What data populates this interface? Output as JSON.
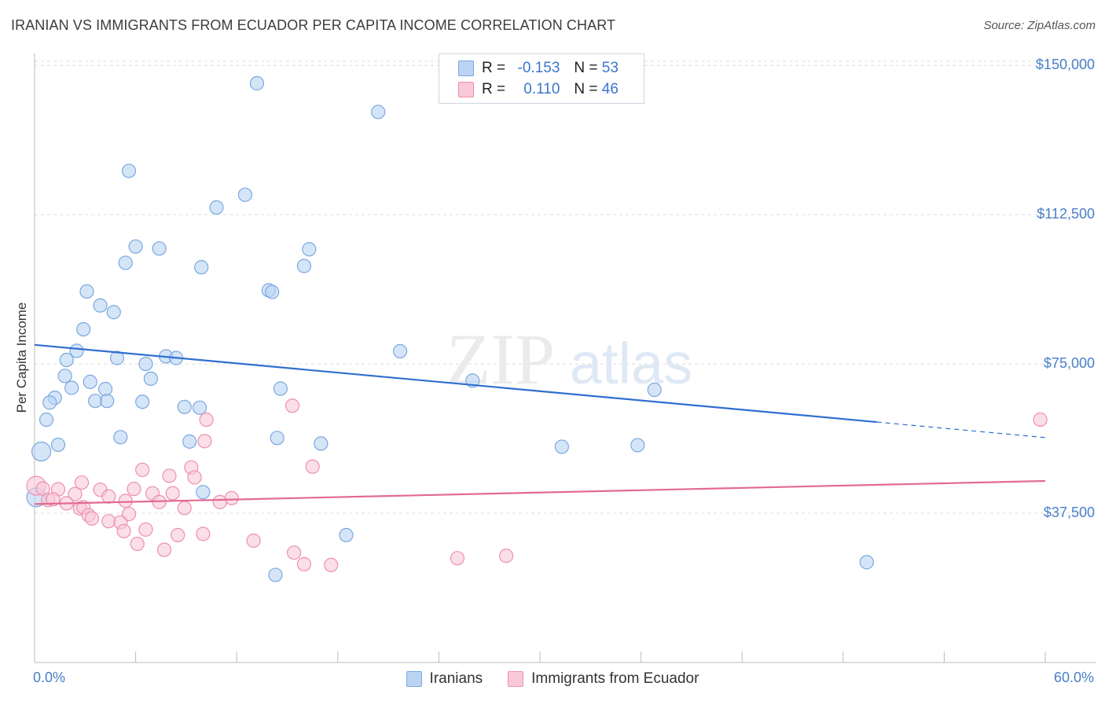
{
  "header": {
    "title": "IRANIAN VS IMMIGRANTS FROM ECUADOR PER CAPITA INCOME CORRELATION CHART",
    "source": "Source: ZipAtlas.com"
  },
  "watermark": {
    "zip": "ZIP",
    "atlas": "atlas"
  },
  "legend": {
    "r_label": "R =",
    "n_label": "N =",
    "rows": [
      {
        "r": "-0.153",
        "n": "53",
        "color": "#a7c7ef"
      },
      {
        "r": " 0.110",
        "n": "46",
        "color": "#f6b4c9"
      }
    ]
  },
  "bottom_legend": {
    "series1": "Iranians",
    "series2": "Immigrants from Ecuador"
  },
  "axes": {
    "ylabel": "Per Capita Income",
    "x_min_label": "0.0%",
    "x_max_label": "60.0%",
    "y_ticks": [
      "$37,500",
      "$75,000",
      "$112,500",
      "$150,000"
    ]
  },
  "chart_data": {
    "type": "scatter",
    "title": "IRANIAN VS IMMIGRANTS FROM ECUADOR PER CAPITA INCOME CORRELATION CHART",
    "xlabel": "",
    "ylabel": "Per Capita Income",
    "xlim": [
      0,
      60
    ],
    "ylim": [
      0,
      153000
    ],
    "y_ticks": [
      37500,
      75000,
      112500,
      150000
    ],
    "grid": true,
    "legend_position": "top-center",
    "series": [
      {
        "name": "Iranians",
        "color": "#7aa8e0",
        "fill": "#b9d3f3",
        "stats": {
          "R": -0.153,
          "N": 53
        },
        "trend": {
          "x0": 0,
          "y0": 79800,
          "x1": 50,
          "y1": 60400,
          "dash_to_x": 60,
          "dash_y": 56500
        },
        "points": [
          [
            13.2,
            145500
          ],
          [
            20.4,
            138300
          ],
          [
            5.6,
            123500
          ],
          [
            12.5,
            117500
          ],
          [
            10.8,
            114300
          ],
          [
            6.0,
            104500
          ],
          [
            7.4,
            104000
          ],
          [
            16.3,
            103800
          ],
          [
            5.4,
            100400
          ],
          [
            9.9,
            99300
          ],
          [
            16.0,
            99600
          ],
          [
            3.1,
            93200
          ],
          [
            13.9,
            93500
          ],
          [
            14.1,
            93100
          ],
          [
            3.9,
            89700
          ],
          [
            4.7,
            88000
          ],
          [
            2.9,
            83700
          ],
          [
            2.5,
            78300
          ],
          [
            21.7,
            78200
          ],
          [
            1.9,
            76000
          ],
          [
            4.9,
            76500
          ],
          [
            6.6,
            75000
          ],
          [
            7.8,
            76900
          ],
          [
            8.4,
            76500
          ],
          [
            1.8,
            72000
          ],
          [
            6.9,
            71300
          ],
          [
            3.3,
            70500
          ],
          [
            26.0,
            70800
          ],
          [
            2.2,
            69000
          ],
          [
            4.2,
            68700
          ],
          [
            14.6,
            68800
          ],
          [
            36.8,
            68500
          ],
          [
            1.2,
            66500
          ],
          [
            0.9,
            65300
          ],
          [
            3.6,
            65700
          ],
          [
            4.3,
            65700
          ],
          [
            6.4,
            65500
          ],
          [
            8.9,
            64200
          ],
          [
            9.8,
            64000
          ],
          [
            0.7,
            61000
          ],
          [
            5.1,
            56600
          ],
          [
            14.4,
            56400
          ],
          [
            9.2,
            55500
          ],
          [
            17.0,
            55000
          ],
          [
            1.4,
            54700
          ],
          [
            31.3,
            54200
          ],
          [
            35.8,
            54600
          ],
          [
            0.4,
            53000
          ],
          [
            10.0,
            42800
          ],
          [
            0.1,
            41500
          ],
          [
            18.5,
            32000
          ],
          [
            49.4,
            25200
          ],
          [
            14.3,
            22000
          ]
        ]
      },
      {
        "name": "Immigrants from Ecuador",
        "color": "#ee8fae",
        "fill": "#f9c9d8",
        "stats": {
          "R": 0.11,
          "N": 46
        },
        "trend": {
          "x0": 0,
          "y0": 39800,
          "x1": 60,
          "y1": 45600
        },
        "points": [
          [
            59.7,
            61000
          ],
          [
            15.3,
            64500
          ],
          [
            10.2,
            61000
          ],
          [
            10.1,
            55600
          ],
          [
            16.5,
            49200
          ],
          [
            9.3,
            49000
          ],
          [
            6.4,
            48400
          ],
          [
            8.0,
            46900
          ],
          [
            9.5,
            46500
          ],
          [
            0.1,
            44400
          ],
          [
            0.5,
            43700
          ],
          [
            2.8,
            45200
          ],
          [
            1.4,
            43500
          ],
          [
            2.4,
            42300
          ],
          [
            3.9,
            43400
          ],
          [
            5.9,
            43600
          ],
          [
            7.0,
            42500
          ],
          [
            8.2,
            42500
          ],
          [
            4.4,
            41700
          ],
          [
            11.7,
            41300
          ],
          [
            0.8,
            40800
          ],
          [
            1.9,
            40000
          ],
          [
            5.4,
            40600
          ],
          [
            7.4,
            40300
          ],
          [
            11.0,
            40300
          ],
          [
            2.7,
            38700
          ],
          [
            2.9,
            39000
          ],
          [
            3.2,
            37000
          ],
          [
            8.9,
            38800
          ],
          [
            5.6,
            37300
          ],
          [
            3.4,
            36200
          ],
          [
            4.4,
            35500
          ],
          [
            5.1,
            35200
          ],
          [
            5.3,
            33000
          ],
          [
            6.6,
            33400
          ],
          [
            8.5,
            32000
          ],
          [
            10.0,
            32300
          ],
          [
            13.0,
            30600
          ],
          [
            6.1,
            29800
          ],
          [
            7.7,
            28300
          ],
          [
            15.4,
            27600
          ],
          [
            25.1,
            26200
          ],
          [
            28.0,
            26800
          ],
          [
            16.0,
            24700
          ],
          [
            17.6,
            24500
          ],
          [
            1.1,
            41000
          ]
        ]
      }
    ]
  }
}
